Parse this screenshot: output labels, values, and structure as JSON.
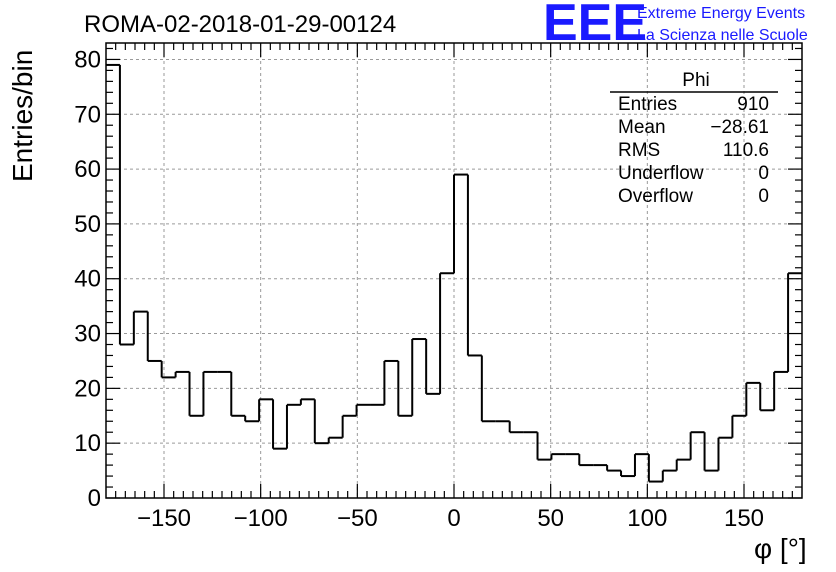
{
  "colors": {
    "logo": "#1a1aff",
    "line": "#000000",
    "grid": "#9a9a9a"
  },
  "logo": {
    "mark": "EEE",
    "line1": "Extreme Energy Events",
    "line2": "La Scienza nelle Scuole"
  },
  "chart_data": {
    "type": "histogram",
    "title": "ROMA-02-2018-01-29-00124",
    "xlabel": "φ [°]",
    "ylabel": "Entries/bin",
    "xlim": [
      -180,
      180
    ],
    "ylim": [
      0,
      83
    ],
    "bin_width": 7.2,
    "grid": true,
    "x_ticks": [
      -150,
      -100,
      -50,
      0,
      50,
      100,
      150
    ],
    "y_ticks": [
      0,
      10,
      20,
      30,
      40,
      50,
      60,
      70,
      80
    ],
    "values": [
      79,
      28,
      34,
      25,
      22,
      23,
      15,
      23,
      23,
      15,
      14,
      18,
      9,
      17,
      18,
      10,
      11,
      15,
      17,
      17,
      25,
      15,
      29,
      19,
      41,
      59,
      26,
      14,
      14,
      12,
      12,
      7,
      8,
      8,
      6,
      6,
      5,
      4,
      8,
      3,
      5,
      7,
      12,
      5,
      11,
      15,
      21,
      16,
      23,
      41
    ],
    "stats_box": {
      "title": "Phi",
      "rows": [
        {
          "label": "Entries",
          "value": "910"
        },
        {
          "label": "Mean",
          "value": "−28.61"
        },
        {
          "label": "RMS",
          "value": "110.6"
        },
        {
          "label": "Underflow",
          "value": "0"
        },
        {
          "label": "Overflow",
          "value": "0"
        }
      ],
      "placement": "top-right"
    }
  }
}
